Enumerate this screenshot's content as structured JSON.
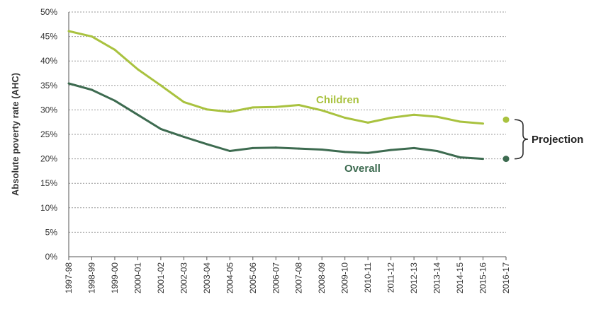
{
  "chart_data": {
    "type": "line",
    "ylabel": "Absolute poverty rate (AHC)",
    "ylim": [
      0,
      50
    ],
    "yticks": [
      "0%",
      "5%",
      "10%",
      "15%",
      "20%",
      "25%",
      "30%",
      "35%",
      "40%",
      "45%",
      "50%"
    ],
    "categories": [
      "1997-98",
      "1998-99",
      "1999-00",
      "2000-01",
      "2001-02",
      "2002-03",
      "2003-04",
      "2004-05",
      "2005-06",
      "2006-07",
      "2007-08",
      "2008-09",
      "2009-10",
      "2010-11",
      "2011-12",
      "2012-13",
      "2013-14",
      "2014-15",
      "2015-16",
      "2016-17"
    ],
    "grid": true,
    "series": [
      {
        "name": "Children",
        "color": "#a9c23f",
        "values": [
          46.1,
          45.0,
          42.3,
          38.3,
          35.0,
          31.6,
          30.1,
          29.6,
          30.5,
          30.6,
          31.0,
          29.9,
          28.4,
          27.4,
          28.4,
          29.0,
          28.6,
          27.6,
          27.2,
          null
        ],
        "projection": 28.0
      },
      {
        "name": "Overall",
        "color": "#3d6b50",
        "values": [
          35.4,
          34.1,
          31.9,
          29.0,
          26.1,
          24.5,
          23.0,
          21.6,
          22.2,
          22.3,
          22.1,
          21.9,
          21.4,
          21.2,
          21.8,
          22.2,
          21.6,
          20.3,
          20.0,
          null
        ],
        "projection": 20.0
      }
    ],
    "annotation": "Projection"
  }
}
